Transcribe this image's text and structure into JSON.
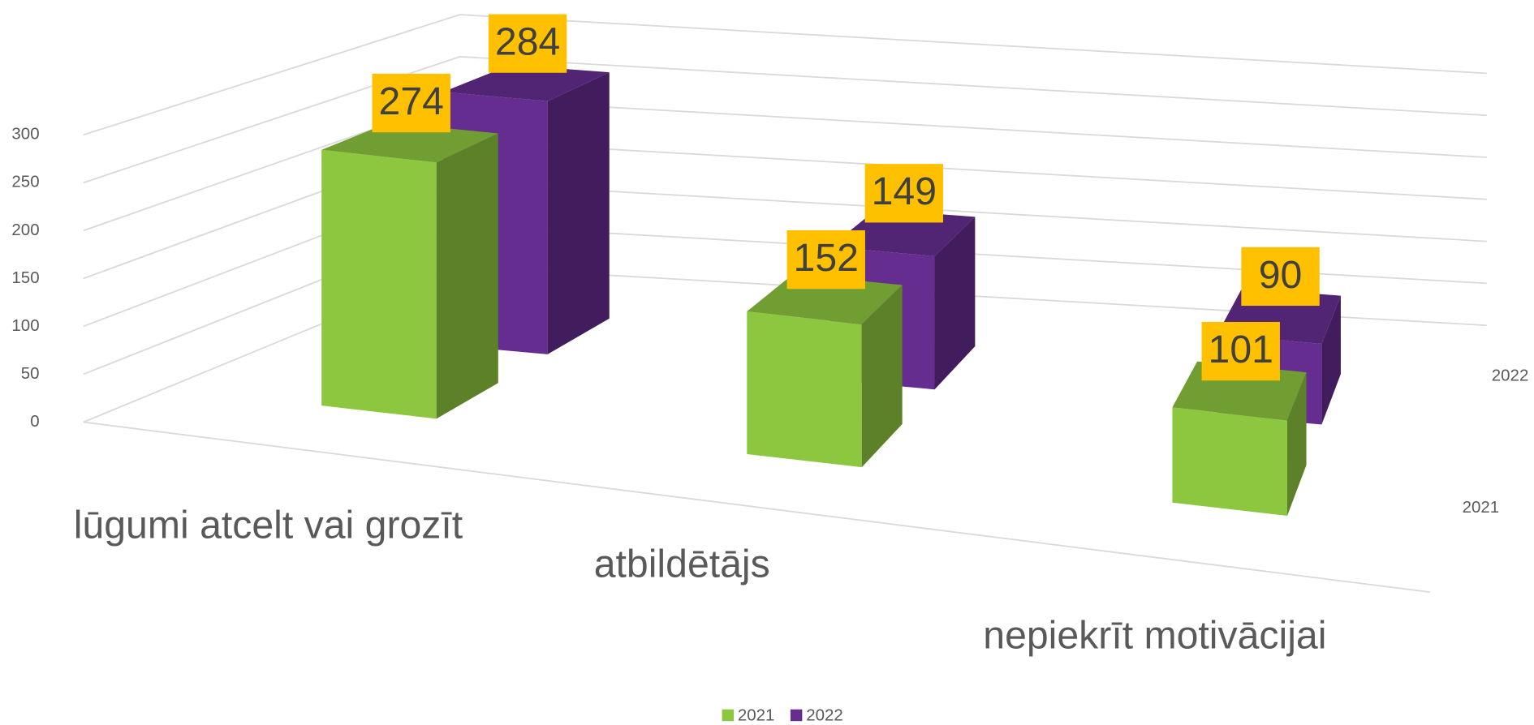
{
  "chart_data": {
    "type": "bar3d",
    "categories": [
      "lūgumi atcelt vai grozīt",
      "atbildētājs",
      "nepiekrīt motivācijai"
    ],
    "series": [
      {
        "name": "2021",
        "color": "#8dc63f",
        "values": [
          274,
          152,
          101
        ]
      },
      {
        "name": "2022",
        "color": "#662d91",
        "values": [
          284,
          149,
          90
        ]
      }
    ],
    "ylim": [
      0,
      300
    ],
    "yticks": [
      0,
      50,
      100,
      150,
      200,
      250,
      300
    ],
    "grid": true,
    "legend": "bottom"
  }
}
